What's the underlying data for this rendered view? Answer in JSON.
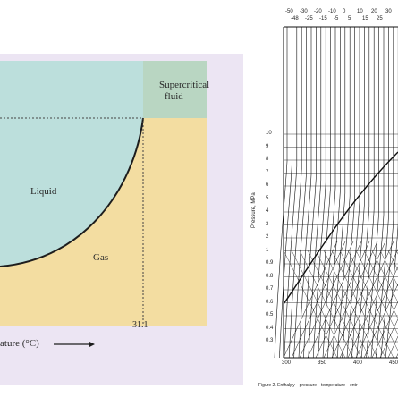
{
  "left_diagram": {
    "labels": {
      "supercritical_line1": "Supercritical",
      "supercritical_line2": "fluid",
      "liquid": "Liquid",
      "gas": "Gas"
    },
    "x_tick": "31.1",
    "x_axis_label": "ature (°C)",
    "colors": {
      "liquid": "#bcdfdc",
      "gas": "#f3dda1",
      "supercritical": "#b9d6c2",
      "frame": "#e9e2f1"
    }
  },
  "right_diagram": {
    "top_ticks_row1": [
      "-50",
      "-30",
      "-20",
      "-10",
      "0",
      "10",
      "20",
      "30"
    ],
    "top_ticks_row2": [
      "-48",
      "-25",
      "-15",
      "-5",
      "5",
      "15",
      "25"
    ],
    "bottom_ticks": [
      "300",
      "350",
      "400",
      "450"
    ],
    "y_ticks": [
      "10",
      "9",
      "8",
      "7",
      "6",
      "5",
      "4",
      "3",
      "2",
      "1",
      "0.9",
      "0.8",
      "0.7",
      "0.6",
      "0.5",
      "0.4",
      "0.3"
    ],
    "y_axis_label": "Pressure, MPa",
    "caption": "Figure 2. Enthalpy—pressure—temperature—entr"
  }
}
